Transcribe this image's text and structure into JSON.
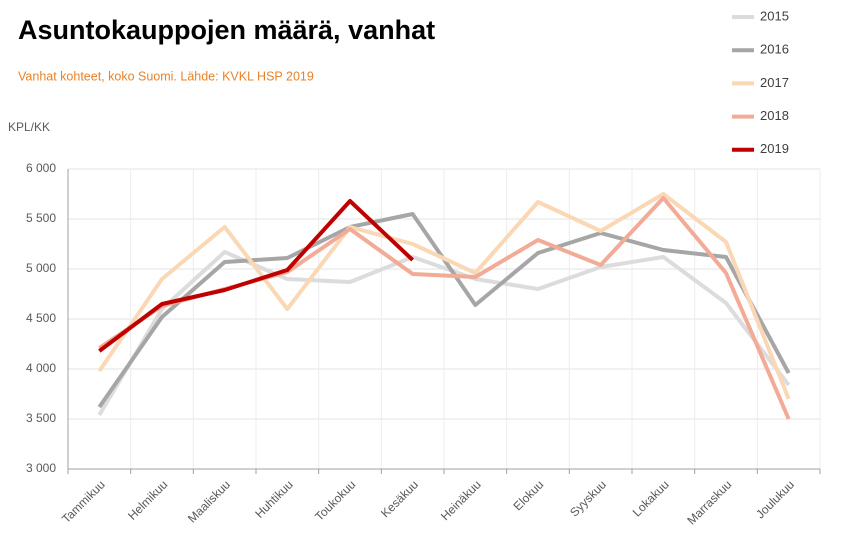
{
  "chart_data": {
    "type": "line",
    "title": "Asuntokauppojen määrä, vanhat",
    "subtitle": "Vanhat kohteet, koko Suomi. Lähde: KVKL HSP 2019",
    "y_label": "KPL/KK",
    "categories": [
      "Tammikuu",
      "Helmikuu",
      "Maaliskuu",
      "Huhtikuu",
      "Toukokuu",
      "Kesäkuu",
      "Heinäkuu",
      "Elokuu",
      "Syyskuu",
      "Lokakuu",
      "Marraskuu",
      "Joulukuu"
    ],
    "series": [
      {
        "name": "2015",
        "color": "#dcdcdc",
        "values": [
          3540,
          4600,
          5170,
          4900,
          4870,
          5120,
          4900,
          4800,
          5020,
          5120,
          4660,
          3840
        ]
      },
      {
        "name": "2016",
        "color": "#a6a6a6",
        "values": [
          3620,
          4520,
          5070,
          5110,
          5420,
          5550,
          4640,
          5160,
          5360,
          5190,
          5120,
          3960
        ]
      },
      {
        "name": "2017",
        "color": "#fad7b5",
        "values": [
          3980,
          4900,
          5420,
          4600,
          5420,
          5250,
          4960,
          5670,
          5380,
          5750,
          5270,
          3700
        ]
      },
      {
        "name": "2018",
        "color": "#f2ab96",
        "values": [
          4210,
          4630,
          4800,
          4970,
          5400,
          4950,
          4920,
          5290,
          5040,
          5710,
          4960,
          3500
        ]
      },
      {
        "name": "2019",
        "color": "#c00000",
        "values": [
          4180,
          4650,
          4790,
          4990,
          5680,
          5090,
          null,
          null,
          null,
          null,
          null,
          null
        ]
      }
    ],
    "ylim": [
      3000,
      6000
    ],
    "yticks": [
      {
        "value": 3000,
        "label": "3 000"
      },
      {
        "value": 3500,
        "label": "3 500"
      },
      {
        "value": 4000,
        "label": "4 000"
      },
      {
        "value": 4500,
        "label": "4 500"
      },
      {
        "value": 5000,
        "label": "5 000"
      },
      {
        "value": 5500,
        "label": "5 500"
      },
      {
        "value": 6000,
        "label": "6 000"
      }
    ],
    "grid": true,
    "legend": "top-right"
  }
}
